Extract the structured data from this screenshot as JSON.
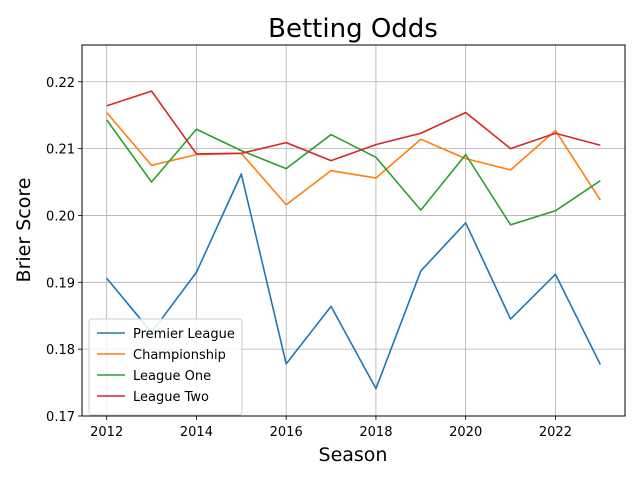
{
  "chart_data": {
    "type": "line",
    "title": "Betting Odds",
    "xlabel": "Season",
    "ylabel": "Brier Score",
    "x": [
      2012,
      2013,
      2014,
      2015,
      2016,
      2017,
      2018,
      2019,
      2020,
      2021,
      2022,
      2023
    ],
    "xlim": [
      2011.45,
      2023.55
    ],
    "ylim": [
      0.17,
      0.2255
    ],
    "xticks": [
      2012,
      2014,
      2016,
      2018,
      2020,
      2022
    ],
    "yticks": [
      0.17,
      0.18,
      0.19,
      0.2,
      0.21,
      0.22
    ],
    "grid": true,
    "legend_position": "lower-left",
    "series": [
      {
        "name": "Premier League",
        "color": "#1f77b4",
        "values": [
          0.1906,
          0.1825,
          0.1915,
          0.2062,
          0.1778,
          0.1864,
          0.1741,
          0.1917,
          0.1989,
          0.1845,
          0.1912,
          0.1777
        ]
      },
      {
        "name": "Championship",
        "color": "#ff7f0e",
        "values": [
          0.2154,
          0.2075,
          0.2091,
          0.2093,
          0.2016,
          0.2067,
          0.2056,
          0.2114,
          0.2085,
          0.2068,
          0.2127,
          0.2023
        ]
      },
      {
        "name": "League One",
        "color": "#2ca02c",
        "values": [
          0.2143,
          0.205,
          0.2129,
          0.2097,
          0.207,
          0.2121,
          0.2087,
          0.2008,
          0.2091,
          0.1986,
          0.2007,
          0.2052
        ]
      },
      {
        "name": "League Two",
        "color": "#d62728",
        "values": [
          0.2164,
          0.2186,
          0.2092,
          0.2093,
          0.2109,
          0.2082,
          0.2106,
          0.2123,
          0.2154,
          0.21,
          0.2123,
          0.2105
        ]
      }
    ]
  }
}
